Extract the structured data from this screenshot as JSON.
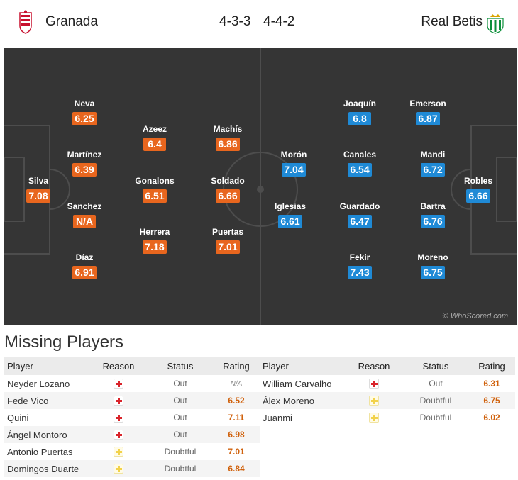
{
  "header": {
    "home_team": "Granada",
    "away_team": "Real Betis",
    "home_formation": "4-3-3",
    "away_formation": "4-4-2",
    "home_crest_icon": "granada-crest-icon",
    "away_crest_icon": "real-betis-crest-icon"
  },
  "colors": {
    "home_rating": "#e8661e",
    "away_rating": "#1f8ad6",
    "pitch": "#353535"
  },
  "pitch": {
    "home_players": [
      {
        "name": "Silva",
        "rating": "7.08"
      },
      {
        "name": "Neva",
        "rating": "6.25"
      },
      {
        "name": "Martínez",
        "rating": "6.39"
      },
      {
        "name": "Sanchez",
        "rating": "N/A"
      },
      {
        "name": "Díaz",
        "rating": "6.91"
      },
      {
        "name": "Azeez",
        "rating": "6.4"
      },
      {
        "name": "Gonalons",
        "rating": "6.51"
      },
      {
        "name": "Herrera",
        "rating": "7.18"
      },
      {
        "name": "Machís",
        "rating": "6.86"
      },
      {
        "name": "Soldado",
        "rating": "6.66"
      },
      {
        "name": "Puertas",
        "rating": "7.01"
      }
    ],
    "away_players": [
      {
        "name": "Joaquín",
        "rating": "6.8"
      },
      {
        "name": "Morón",
        "rating": "7.04"
      },
      {
        "name": "Iglesias",
        "rating": "6.61"
      },
      {
        "name": "Canales",
        "rating": "6.54"
      },
      {
        "name": "Guardado",
        "rating": "6.47"
      },
      {
        "name": "Fekir",
        "rating": "7.43"
      },
      {
        "name": "Emerson",
        "rating": "6.87"
      },
      {
        "name": "Mandi",
        "rating": "6.72"
      },
      {
        "name": "Bartra",
        "rating": "6.76"
      },
      {
        "name": "Moreno",
        "rating": "6.75"
      },
      {
        "name": "Robles",
        "rating": "6.66"
      }
    ],
    "watermark": "© WhoScored.com"
  },
  "missing": {
    "title": "Missing Players",
    "columns": {
      "player": "Player",
      "reason": "Reason",
      "status": "Status",
      "rating": "Rating"
    },
    "home": [
      {
        "player": "Neyder Lozano",
        "reason": "injury",
        "status": "Out",
        "rating": "N/A"
      },
      {
        "player": "Fede Vico",
        "reason": "injury",
        "status": "Out",
        "rating": "6.52"
      },
      {
        "player": "Quini",
        "reason": "injury",
        "status": "Out",
        "rating": "7.11"
      },
      {
        "player": "Ángel Montoro",
        "reason": "injury",
        "status": "Out",
        "rating": "6.98"
      },
      {
        "player": "Antonio Puertas",
        "reason": "doubtful",
        "status": "Doubtful",
        "rating": "7.01"
      },
      {
        "player": "Domingos Duarte",
        "reason": "doubtful",
        "status": "Doubtful",
        "rating": "6.84"
      }
    ],
    "away": [
      {
        "player": "William Carvalho",
        "reason": "injury",
        "status": "Out",
        "rating": "6.31"
      },
      {
        "player": "Álex Moreno",
        "reason": "doubtful",
        "status": "Doubtful",
        "rating": "6.75"
      },
      {
        "player": "Juanmi",
        "reason": "doubtful",
        "status": "Doubtful",
        "rating": "6.02"
      }
    ]
  }
}
